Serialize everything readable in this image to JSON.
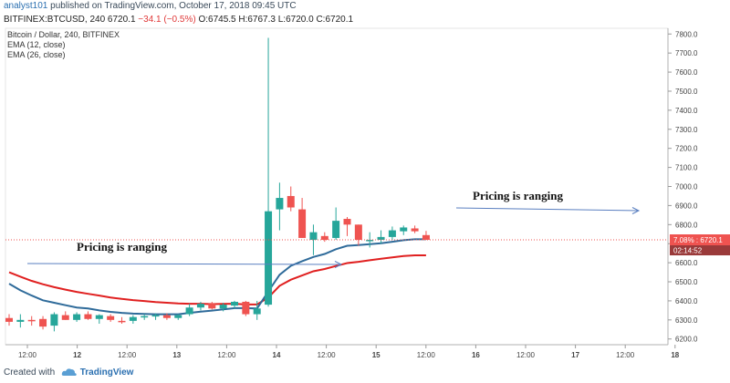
{
  "header": {
    "user": "analyst101",
    "published_text": "published on TradingView.com, October 17, 2018 09:45 UTC"
  },
  "symbol_bar": {
    "symbol": "BITFINEX:BTCUSD, 240",
    "last": "6720.1",
    "change": "−34.1 (−0.5%)",
    "ohlc": "O:6745.5 H:6767.3 L:6720.0 C:6720.1"
  },
  "legend": {
    "title": "Bitcoin / Dollar, 240, BITFINEX",
    "ema12": "EMA (12, close)",
    "ema26": "EMA (26, close)"
  },
  "footer": {
    "created_with": "Created with",
    "brand": "TradingView",
    "brand_icon": "tradingview-cloud-icon"
  },
  "colors": {
    "up": "#26a69a",
    "down": "#ef5350",
    "ema12": "#2f6b9a",
    "ema26": "#e02020",
    "arrow": "#5a7fc0",
    "last_price_bg": "#ef5350"
  },
  "chart_data": {
    "type": "candlestick",
    "ylim": [
      6170,
      7830
    ],
    "yticks": [
      6200,
      6300,
      6400,
      6500,
      6600,
      6700,
      6800,
      6900,
      7000,
      7100,
      7200,
      7300,
      7400,
      7500,
      7600,
      7700,
      7800
    ],
    "x_tick_labels": [
      "12:00",
      "12",
      "12:00",
      "13",
      "12:00",
      "14",
      "12:00",
      "15",
      "12:00",
      "16",
      "12:00",
      "17",
      "12:00",
      "18"
    ],
    "candles": [
      {
        "o": 6310,
        "h": 6330,
        "l": 6270,
        "c": 6290
      },
      {
        "o": 6290,
        "h": 6330,
        "l": 6260,
        "c": 6300
      },
      {
        "o": 6300,
        "h": 6320,
        "l": 6270,
        "c": 6295
      },
      {
        "o": 6305,
        "h": 6320,
        "l": 6250,
        "c": 6265
      },
      {
        "o": 6270,
        "h": 6340,
        "l": 6240,
        "c": 6330
      },
      {
        "o": 6325,
        "h": 6345,
        "l": 6300,
        "c": 6300
      },
      {
        "o": 6300,
        "h": 6340,
        "l": 6290,
        "c": 6330
      },
      {
        "o": 6330,
        "h": 6345,
        "l": 6300,
        "c": 6305
      },
      {
        "o": 6305,
        "h": 6330,
        "l": 6280,
        "c": 6325
      },
      {
        "o": 6320,
        "h": 6330,
        "l": 6290,
        "c": 6300
      },
      {
        "o": 6295,
        "h": 6315,
        "l": 6280,
        "c": 6290
      },
      {
        "o": 6295,
        "h": 6325,
        "l": 6280,
        "c": 6315
      },
      {
        "o": 6315,
        "h": 6330,
        "l": 6300,
        "c": 6320
      },
      {
        "o": 6320,
        "h": 6335,
        "l": 6300,
        "c": 6325
      },
      {
        "o": 6325,
        "h": 6335,
        "l": 6300,
        "c": 6310
      },
      {
        "o": 6310,
        "h": 6330,
        "l": 6300,
        "c": 6325
      },
      {
        "o": 6330,
        "h": 6385,
        "l": 6320,
        "c": 6365
      },
      {
        "o": 6365,
        "h": 6395,
        "l": 6350,
        "c": 6385
      },
      {
        "o": 6385,
        "h": 6395,
        "l": 6355,
        "c": 6360
      },
      {
        "o": 6360,
        "h": 6390,
        "l": 6345,
        "c": 6380
      },
      {
        "o": 6375,
        "h": 6400,
        "l": 6360,
        "c": 6395
      },
      {
        "o": 6395,
        "h": 6400,
        "l": 6320,
        "c": 6330
      },
      {
        "o": 6330,
        "h": 6400,
        "l": 6300,
        "c": 6360
      },
      {
        "o": 6380,
        "h": 7780,
        "l": 6370,
        "c": 6870
      },
      {
        "o": 6880,
        "h": 7020,
        "l": 6770,
        "c": 6940
      },
      {
        "o": 6950,
        "h": 7000,
        "l": 6870,
        "c": 6890
      },
      {
        "o": 6880,
        "h": 6940,
        "l": 6730,
        "c": 6730
      },
      {
        "o": 6720,
        "h": 6800,
        "l": 6640,
        "c": 6760
      },
      {
        "o": 6740,
        "h": 6760,
        "l": 6710,
        "c": 6720
      },
      {
        "o": 6730,
        "h": 6890,
        "l": 6720,
        "c": 6820
      },
      {
        "o": 6830,
        "h": 6840,
        "l": 6740,
        "c": 6800
      },
      {
        "o": 6800,
        "h": 6800,
        "l": 6690,
        "c": 6720
      },
      {
        "o": 6720,
        "h": 6760,
        "l": 6680,
        "c": 6720
      },
      {
        "o": 6720,
        "h": 6770,
        "l": 6700,
        "c": 6735
      },
      {
        "o": 6735,
        "h": 6790,
        "l": 6720,
        "c": 6770
      },
      {
        "o": 6765,
        "h": 6795,
        "l": 6745,
        "c": 6785
      },
      {
        "o": 6780,
        "h": 6795,
        "l": 6755,
        "c": 6765
      },
      {
        "o": 6745,
        "h": 6767,
        "l": 6720,
        "c": 6720
      }
    ],
    "ema12": [
      6490,
      6455,
      6428,
      6403,
      6390,
      6377,
      6365,
      6360,
      6350,
      6342,
      6337,
      6333,
      6331,
      6330,
      6330,
      6330,
      6337,
      6343,
      6349,
      6355,
      6362,
      6362,
      6360,
      6450,
      6537,
      6584,
      6608,
      6630,
      6646,
      6671,
      6689,
      6693,
      6697,
      6702,
      6710,
      6718,
      6723,
      6723
    ],
    "ema26": [
      6550,
      6527,
      6505,
      6487,
      6472,
      6459,
      6447,
      6437,
      6428,
      6418,
      6410,
      6404,
      6399,
      6394,
      6390,
      6386,
      6385,
      6385,
      6383,
      6384,
      6385,
      6381,
      6381,
      6418,
      6479,
      6511,
      6533,
      6555,
      6567,
      6583,
      6598,
      6605,
      6613,
      6621,
      6628,
      6635,
      6639,
      6639
    ],
    "last_price_label": "6720.1",
    "last_price_pct": "7.08%",
    "countdown": "02:14:52",
    "annotations": [
      {
        "text": "Pricing is ranging"
      },
      {
        "text": "Pricing is ranging"
      }
    ]
  }
}
